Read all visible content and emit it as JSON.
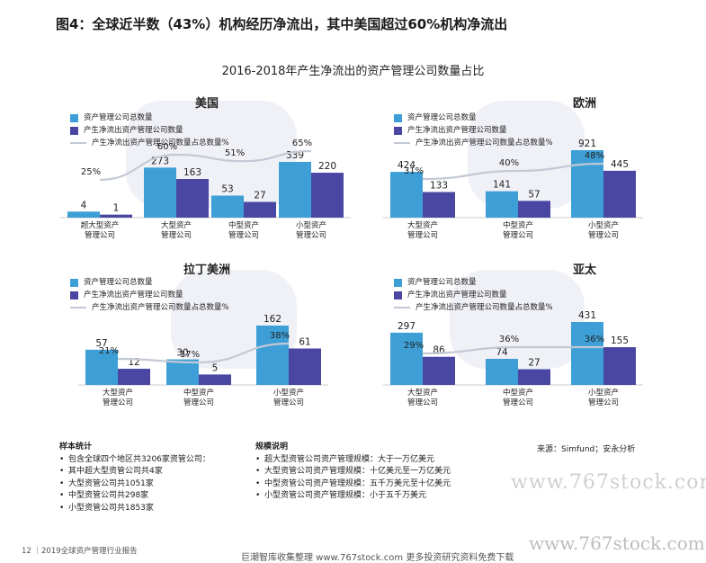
{
  "figure_title": "图4：全球近半数（43%）机构经历净流出，其中美国超过60%机构净流出",
  "chart_title": "2016-2018年产生净流出的资产管理公司数量占比",
  "legend_labels": [
    "资产管理公司总数量",
    "产生净流出资产管理公司数量",
    "产生净流出资产管理公司数量占总数量%"
  ],
  "colors": {
    "total": "#3d9fd6",
    "outflow": "#4a47a3",
    "pct_line": "#c3c9d4"
  },
  "chart_data": [
    {
      "type": "bar",
      "title": "美国",
      "categories": [
        "超大型资产管理公司",
        "大型资产管理公司",
        "中型资产管理公司",
        "小型资产管理公司"
      ],
      "category_lines": [
        [
          "超大型资产",
          "管理公司"
        ],
        [
          "大型资产",
          "管理公司"
        ],
        [
          "中型资产",
          "管理公司"
        ],
        [
          "小型资产",
          "管理公司"
        ]
      ],
      "series": [
        {
          "name": "资产管理公司总数量",
          "values": [
            4,
            273,
            53,
            339
          ]
        },
        {
          "name": "产生净流出资产管理公司数量",
          "values": [
            1,
            163,
            27,
            220
          ]
        },
        {
          "name": "产生净流出资产管理公司数量占总数量%",
          "values": [
            25,
            60,
            51,
            65
          ]
        }
      ],
      "value_labels_total": [
        "4",
        "273",
        "53",
        "339"
      ],
      "value_labels_outflow": [
        "1",
        "163",
        "27",
        "220"
      ],
      "pct_labels": [
        "25%",
        "60%",
        "51%",
        "65%"
      ]
    },
    {
      "type": "bar",
      "title": "欧洲",
      "categories": [
        "大型资产管理公司",
        "中型资产管理公司",
        "小型资产管理公司"
      ],
      "category_lines": [
        [
          "大型资产",
          "管理公司"
        ],
        [
          "中型资产",
          "管理公司"
        ],
        [
          "小型资产",
          "管理公司"
        ]
      ],
      "series": [
        {
          "name": "资产管理公司总数量",
          "values": [
            424,
            141,
            921
          ]
        },
        {
          "name": "产生净流出资产管理公司数量",
          "values": [
            133,
            57,
            445
          ]
        },
        {
          "name": "产生净流出资产管理公司数量占总数量%",
          "values": [
            31,
            40,
            48
          ]
        }
      ],
      "value_labels_total": [
        "424",
        "141",
        "921"
      ],
      "value_labels_outflow": [
        "133",
        "57",
        "445"
      ],
      "pct_labels": [
        "31%",
        "40%",
        "48%"
      ]
    },
    {
      "type": "bar",
      "title": "拉丁美洲",
      "categories": [
        "大型资产管理公司",
        "中型资产管理公司",
        "小型资产管理公司"
      ],
      "category_lines": [
        [
          "大型资产",
          "管理公司"
        ],
        [
          "中型资产",
          "管理公司"
        ],
        [
          "小型资产",
          "管理公司"
        ]
      ],
      "series": [
        {
          "name": "资产管理公司总数量",
          "values": [
            57,
            30,
            162
          ]
        },
        {
          "name": "产生净流出资产管理公司数量",
          "values": [
            12,
            5,
            61
          ]
        },
        {
          "name": "产生净流出资产管理公司数量占总数量%",
          "values": [
            21,
            17,
            38
          ]
        }
      ],
      "value_labels_total": [
        "57",
        "30",
        "162"
      ],
      "value_labels_outflow": [
        "12",
        "5",
        "61"
      ],
      "pct_labels": [
        "21%",
        "17%",
        "38%"
      ]
    },
    {
      "type": "bar",
      "title": "亚太",
      "categories": [
        "大型资产管理公司",
        "中型资产管理公司",
        "小型资产管理公司"
      ],
      "category_lines": [
        [
          "大型资产",
          "管理公司"
        ],
        [
          "中型资产",
          "管理公司"
        ],
        [
          "小型资产",
          "管理公司"
        ]
      ],
      "series": [
        {
          "name": "资产管理公司总数量",
          "values": [
            297,
            74,
            431
          ]
        },
        {
          "name": "产生净流出资产管理公司数量",
          "values": [
            86,
            27,
            155
          ]
        },
        {
          "name": "产生净流出资产管理公司数量占总数量%",
          "values": [
            29,
            36,
            36
          ]
        }
      ],
      "value_labels_total": [
        "297",
        "74",
        "431"
      ],
      "value_labels_outflow": [
        "86",
        "27",
        "155"
      ],
      "pct_labels": [
        "29%",
        "36%",
        "36%"
      ]
    }
  ],
  "sample_stats": {
    "heading": "样本统计",
    "items": [
      "包含全球四个地区共3206家资管公司：",
      "其中超大型资管公司共4家",
      "大型资管公司共1051家",
      "中型资管公司共298家",
      "小型资管公司共1853家"
    ]
  },
  "scale_notes": {
    "heading": "规模说明",
    "items": [
      "超大型资管公司资产管理规模：大于一万亿美元",
      "大型资管公司资产管理规模：十亿美元至一万亿美元",
      "中型资管公司资产管理规模：五千万美元至十亿美元",
      "小型资管公司资产管理规模：小于五千万美元"
    ]
  },
  "source": "来源：Simfund；安永分析",
  "footer": "12  ｜2019全球资产管理行业报告",
  "watermarks": [
    "www.767stock.com",
    "www.767stock.com",
    "巨潮智库收集整理 www.767stock.com 更多投资研究资料免费下载"
  ]
}
